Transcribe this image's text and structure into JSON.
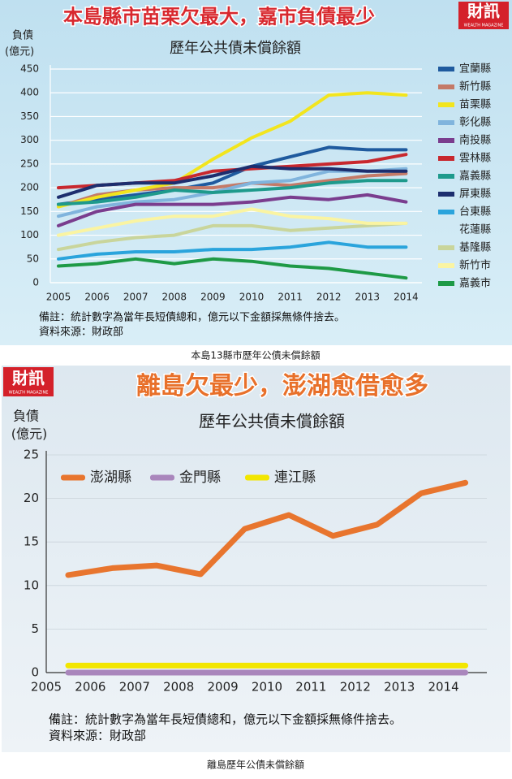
{
  "chart_data": [
    {
      "type": "line",
      "title": "本島縣市苗栗欠最大，嘉市負債最少",
      "subtitle": "歷年公共債未償餘額",
      "brand": "財訊",
      "brand_sub": "WEALTH MAGAZINE",
      "ylabel": "負債",
      "yunit": "(億元)",
      "categories": [
        "2005",
        "2006",
        "2007",
        "2008",
        "2009",
        "2010",
        "2011",
        "2012",
        "2013",
        "2014"
      ],
      "ylim": [
        0,
        450
      ],
      "yticks": [
        0,
        50,
        100,
        150,
        200,
        250,
        300,
        350,
        400,
        450
      ],
      "grid": true,
      "legend": "right",
      "series": [
        {
          "name": "宜蘭縣",
          "color": "#1f5a9e",
          "values": [
            165,
            175,
            185,
            195,
            210,
            245,
            265,
            285,
            280,
            280
          ]
        },
        {
          "name": "新竹縣",
          "color": "#c47a68",
          "values": [
            160,
            185,
            195,
            200,
            200,
            210,
            205,
            215,
            225,
            230
          ]
        },
        {
          "name": "苗栗縣",
          "color": "#f2e51e",
          "values": [
            160,
            180,
            195,
            210,
            260,
            305,
            340,
            395,
            400,
            395
          ]
        },
        {
          "name": "彰化縣",
          "color": "#80b4dd",
          "values": [
            140,
            160,
            170,
            175,
            190,
            210,
            215,
            235,
            235,
            240
          ]
        },
        {
          "name": "南投縣",
          "color": "#7a3d8e",
          "values": [
            120,
            150,
            165,
            165,
            165,
            170,
            180,
            175,
            185,
            170
          ]
        },
        {
          "name": "雲林縣",
          "color": "#c8282e",
          "values": [
            200,
            205,
            210,
            215,
            235,
            240,
            245,
            250,
            255,
            270
          ]
        },
        {
          "name": "嘉義縣",
          "color": "#1e9a8c",
          "values": [
            165,
            170,
            180,
            195,
            190,
            195,
            200,
            210,
            215,
            215
          ]
        },
        {
          "name": "屏東縣",
          "color": "#1d2e6e",
          "values": [
            180,
            205,
            210,
            210,
            225,
            245,
            240,
            240,
            235,
            235
          ]
        },
        {
          "name": "台東縣",
          "color": "#2aa4dc",
          "values": [
            50,
            60,
            65,
            65,
            70,
            70,
            75,
            85,
            75,
            75
          ]
        },
        {
          "name": "花蓮縣",
          "color": null,
          "values": [
            null,
            null,
            null,
            null,
            null,
            null,
            null,
            null,
            null,
            null
          ]
        },
        {
          "name": "基隆縣",
          "color": "#c9d59b",
          "values": [
            70,
            85,
            95,
            100,
            120,
            120,
            110,
            115,
            120,
            125
          ]
        },
        {
          "name": "新竹市",
          "color": "#faf4a2",
          "values": [
            100,
            115,
            130,
            140,
            140,
            155,
            140,
            135,
            125,
            125
          ]
        },
        {
          "name": "嘉義市",
          "color": "#1e9a46",
          "values": [
            35,
            40,
            50,
            40,
            50,
            45,
            35,
            30,
            20,
            10
          ]
        }
      ],
      "notes": [
        "備註：統計數字為當年長短債總和，億元以下金額採無條件捨去。",
        "資料來源：財政部"
      ],
      "caption": "本島13縣市歷年公債未償餘額"
    },
    {
      "type": "line",
      "title": "離島欠最少，澎湖愈借愈多",
      "subtitle": "歷年公共債未償餘額",
      "brand": "財訊",
      "brand_sub": "WEALTH MAGAZINE",
      "ylabel": "負債",
      "yunit": "(億元)",
      "categories": [
        "2005",
        "2006",
        "2007",
        "2008",
        "2009",
        "2010",
        "2011",
        "2012",
        "2013",
        "2014"
      ],
      "ylim": [
        0,
        25
      ],
      "yticks": [
        0,
        5,
        10,
        15,
        20,
        25
      ],
      "grid": true,
      "legend": "upper left",
      "series": [
        {
          "name": "澎湖縣",
          "color": "#e8752e",
          "values": [
            11.2,
            12.0,
            12.3,
            11.3,
            16.5,
            18.1,
            15.7,
            17.0,
            20.6,
            21.8
          ]
        },
        {
          "name": "金門縣",
          "color": "#a986bc",
          "values": [
            0,
            0,
            0,
            0,
            0,
            0,
            0,
            0,
            0,
            0
          ]
        },
        {
          "name": "連江縣",
          "color": "#f2e600",
          "values": [
            0.8,
            0.8,
            0.8,
            0.8,
            0.8,
            0.8,
            0.8,
            0.8,
            0.8,
            0.8
          ]
        }
      ],
      "notes": [
        "備註：統計數字為當年長短債總和，億元以下金額採無條件捨去。",
        "資料來源：財政部"
      ],
      "caption": "離島歷年公債未償餘額"
    }
  ]
}
